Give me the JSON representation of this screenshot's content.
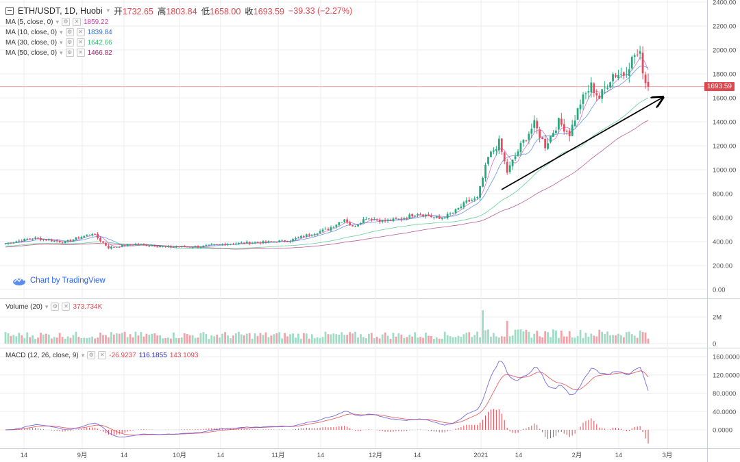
{
  "header": {
    "symbol_title": "ETH/USDT, 1D, Huobi",
    "ohlc": [
      {
        "label": "开",
        "value": "1732.65"
      },
      {
        "label": "高",
        "value": "1803.84"
      },
      {
        "label": "低",
        "value": "1658.00"
      },
      {
        "label": "收",
        "value": "1693.59"
      }
    ],
    "change": "−39.33 (−2.27%)"
  },
  "indicators": [
    {
      "label": "MA (5, close, 0)",
      "value": "1859.22",
      "color": "#d23bb9"
    },
    {
      "label": "MA (10, close, 0)",
      "value": "1839.84",
      "color": "#2f6fd8"
    },
    {
      "label": "MA (30, close, 0)",
      "value": "1642.66",
      "color": "#2fbf71"
    },
    {
      "label": "MA (50, close, 0)",
      "value": "1466.82",
      "color": "#a0246b"
    }
  ],
  "volume_legend": {
    "label": "Volume (20)",
    "value": "373.734K",
    "color": "#e0474e"
  },
  "macd_legend": {
    "label": "MACD (12, 26, close, 9)",
    "values": [
      {
        "value": "-26.9237",
        "color": "#e0474e"
      },
      {
        "value": "116.1855",
        "color": "#2323b8"
      },
      {
        "value": "143.1093",
        "color": "#e0474e"
      }
    ]
  },
  "branding": {
    "link_text": "Chart by TradingView"
  },
  "last_price_tag": "1693.59",
  "colors": {
    "up": "#26a69a",
    "down": "#ef5350",
    "up_candle": "#22ab7a",
    "down_candle": "#e84a5f",
    "grid": "#eceef2",
    "axis_text": "#4a4a4a",
    "macd_line": "#5a4fd8",
    "signal_line": "#e0474e",
    "hist": "#e0474e",
    "price_line": "#f2a0a8"
  },
  "chart_data": [
    {
      "type": "candlestick",
      "title": "ETH/USDT, 1D, Huobi",
      "y_ticks": [
        "2400.00",
        "2200.00",
        "2000.00",
        "1800.00",
        "1600.00",
        "1400.00",
        "1200.00",
        "1000.00",
        "800.00",
        "600.00",
        "400.00",
        "200.00",
        "0.00"
      ],
      "ylim": [
        0,
        2400
      ],
      "x_ticks": [
        "14",
        "9月",
        "14",
        "10月",
        "14",
        "11月",
        "14",
        "12月",
        "14",
        "2021",
        "14",
        "2月",
        "14",
        "3月"
      ],
      "series_anchor_closes": [
        {
          "day": 0,
          "close": 385
        },
        {
          "day": 10,
          "close": 430
        },
        {
          "day": 22,
          "close": 395
        },
        {
          "day": 32,
          "close": 470
        },
        {
          "day": 38,
          "close": 350
        },
        {
          "day": 48,
          "close": 380
        },
        {
          "day": 60,
          "close": 355
        },
        {
          "day": 72,
          "close": 360
        },
        {
          "day": 84,
          "close": 385
        },
        {
          "day": 96,
          "close": 395
        },
        {
          "day": 105,
          "close": 410
        },
        {
          "day": 112,
          "close": 460
        },
        {
          "day": 119,
          "close": 505
        },
        {
          "day": 125,
          "close": 590
        },
        {
          "day": 128,
          "close": 520
        },
        {
          "day": 133,
          "close": 600
        },
        {
          "day": 140,
          "close": 570
        },
        {
          "day": 146,
          "close": 590
        },
        {
          "day": 152,
          "close": 640
        },
        {
          "day": 160,
          "close": 590
        },
        {
          "day": 165,
          "close": 640
        },
        {
          "day": 170,
          "close": 730
        },
        {
          "day": 174,
          "close": 760
        },
        {
          "day": 178,
          "close": 1100
        },
        {
          "day": 182,
          "close": 1230
        },
        {
          "day": 185,
          "close": 980
        },
        {
          "day": 190,
          "close": 1200
        },
        {
          "day": 195,
          "close": 1380
        },
        {
          "day": 199,
          "close": 1200
        },
        {
          "day": 204,
          "close": 1400
        },
        {
          "day": 208,
          "close": 1300
        },
        {
          "day": 212,
          "close": 1560
        },
        {
          "day": 216,
          "close": 1700
        },
        {
          "day": 219,
          "close": 1600
        },
        {
          "day": 224,
          "close": 1800
        },
        {
          "day": 228,
          "close": 1800
        },
        {
          "day": 232,
          "close": 1960
        },
        {
          "day": 234,
          "close": 1950
        },
        {
          "day": 236,
          "close": 1732
        },
        {
          "day": 237,
          "close": 1693
        }
      ],
      "last": {
        "open": 1732.65,
        "high": 1803.84,
        "low": 1658.0,
        "close": 1693.59
      },
      "moving_averages": [
        {
          "name": "MA (5, close, 0)",
          "last": 1859.22
        },
        {
          "name": "MA (10, close, 0)",
          "last": 1839.84
        },
        {
          "name": "MA (30, close, 0)",
          "last": 1642.66
        },
        {
          "name": "MA (50, close, 0)",
          "last": 1466.82
        }
      ],
      "annotation": "trend-arrow"
    },
    {
      "type": "bar",
      "title": "Volume (20)",
      "y_ticks": [
        "2M",
        "0"
      ],
      "ylim": [
        0,
        2500000
      ],
      "last_value": 373734
    },
    {
      "type": "line",
      "title": "MACD (12, 26, close, 9)",
      "y_ticks": [
        "160.0000",
        "120.0000",
        "80.0000",
        "40.0000",
        "0.0000"
      ],
      "ylim": [
        -20,
        170
      ],
      "last": {
        "histogram": -26.9237,
        "macd": 116.1855,
        "signal": 143.1093
      }
    }
  ]
}
